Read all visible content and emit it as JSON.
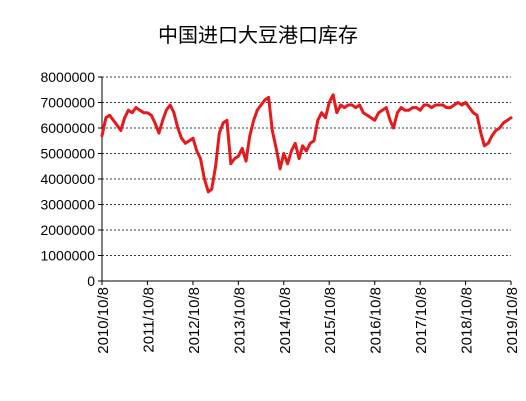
{
  "chart_data": {
    "type": "line",
    "title": "中国进口大豆港口库存",
    "xlabel": "",
    "ylabel": "",
    "ylim": [
      0,
      8000000
    ],
    "y_ticks": [
      0,
      1000000,
      2000000,
      3000000,
      4000000,
      5000000,
      6000000,
      7000000,
      8000000
    ],
    "y_tick_labels": [
      "0",
      "1000000",
      "2000000",
      "3000000",
      "4000000",
      "5000000",
      "6000000",
      "7000000",
      "8000000"
    ],
    "xlim": [
      "2010-10-08",
      "2019-10-08"
    ],
    "x_ticks": [
      "2010-10-08",
      "2011-10-08",
      "2012-10-08",
      "2013-10-08",
      "2014-10-08",
      "2015-10-08",
      "2016-10-08",
      "2017-10-08",
      "2018-10-08",
      "2019-10-08"
    ],
    "x_tick_labels": [
      "2010/10/8",
      "2011/10/8",
      "2012/10/8",
      "2013/10/8",
      "2014/10/8",
      "2015/10/8",
      "2016/10/8",
      "2017/10/8",
      "2018/10/8",
      "2019/10/8"
    ],
    "grid": "horizontal-dashed",
    "series_color": "#e8191c",
    "series": [
      {
        "x": [
          "2010-10-08",
          "2010-11-08",
          "2010-12-08",
          "2011-01-08",
          "2011-02-08",
          "2011-03-08",
          "2011-04-08",
          "2011-05-08",
          "2011-06-08",
          "2011-07-08",
          "2011-08-08",
          "2011-09-08",
          "2011-10-08",
          "2011-11-08",
          "2011-12-08",
          "2012-01-08",
          "2012-02-08",
          "2012-03-08",
          "2012-04-08",
          "2012-05-08",
          "2012-06-08",
          "2012-07-08",
          "2012-08-08",
          "2012-09-08",
          "2012-10-08",
          "2012-11-08",
          "2012-12-08",
          "2013-01-08",
          "2013-02-08",
          "2013-03-08",
          "2013-04-08",
          "2013-05-08",
          "2013-06-08",
          "2013-07-08",
          "2013-08-08",
          "2013-09-08",
          "2013-10-08",
          "2013-11-08",
          "2013-12-08",
          "2014-01-08",
          "2014-02-08",
          "2014-03-08",
          "2014-04-08",
          "2014-05-08",
          "2014-06-08",
          "2014-07-08",
          "2014-08-08",
          "2014-09-08",
          "2014-10-08",
          "2014-11-08",
          "2014-12-08",
          "2015-01-08",
          "2015-02-08",
          "2015-03-08",
          "2015-04-08",
          "2015-05-08",
          "2015-06-08",
          "2015-07-08",
          "2015-08-08",
          "2015-09-08",
          "2015-10-08",
          "2015-11-08",
          "2015-12-08",
          "2016-01-08",
          "2016-02-08",
          "2016-03-08",
          "2016-04-08",
          "2016-05-08",
          "2016-06-08",
          "2016-07-08",
          "2016-08-08",
          "2016-09-08",
          "2016-10-08",
          "2016-11-08",
          "2016-12-08",
          "2017-01-08",
          "2017-02-08",
          "2017-03-08",
          "2017-04-08",
          "2017-05-08",
          "2017-06-08",
          "2017-07-08",
          "2017-08-08",
          "2017-09-08",
          "2017-10-08",
          "2017-11-08",
          "2017-12-08",
          "2018-01-08",
          "2018-02-08",
          "2018-03-08",
          "2018-04-08",
          "2018-05-08",
          "2018-06-08",
          "2018-07-08",
          "2018-08-08",
          "2018-09-08",
          "2018-10-08",
          "2018-11-08",
          "2018-12-08",
          "2019-01-08",
          "2019-02-08",
          "2019-03-08",
          "2019-04-08",
          "2019-05-08",
          "2019-06-08",
          "2019-07-08",
          "2019-08-08",
          "2019-09-08",
          "2019-10-08"
        ],
        "values": [
          5700000,
          6400000,
          6500000,
          6300000,
          6100000,
          5900000,
          6400000,
          6700000,
          6600000,
          6800000,
          6700000,
          6600000,
          6600000,
          6500000,
          6200000,
          5800000,
          6300000,
          6700000,
          6900000,
          6600000,
          6000000,
          5600000,
          5400000,
          5500000,
          5600000,
          5100000,
          4800000,
          4000000,
          3500000,
          3600000,
          4500000,
          5800000,
          6200000,
          6300000,
          4600000,
          4800000,
          4900000,
          5200000,
          4700000,
          5700000,
          6300000,
          6700000,
          6900000,
          7100000,
          7200000,
          5900000,
          5200000,
          4400000,
          5000000,
          4600000,
          5100000,
          5400000,
          4800000,
          5300000,
          5100000,
          5400000,
          5500000,
          6300000,
          6600000,
          6400000,
          7000000,
          7300000,
          6600000,
          6900000,
          6800000,
          6900000,
          6900000,
          6800000,
          6900000,
          6600000,
          6500000,
          6400000,
          6300000,
          6600000,
          6700000,
          6800000,
          6300000,
          6000000,
          6600000,
          6800000,
          6700000,
          6700000,
          6800000,
          6800000,
          6700000,
          6900000,
          6900000,
          6800000,
          6900000,
          6900000,
          6900000,
          6800000,
          6800000,
          6900000,
          7000000,
          6900000,
          7000000,
          6800000,
          6600000,
          6500000,
          5800000,
          5300000,
          5400000,
          5700000,
          5900000,
          6000000,
          6200000,
          6300000,
          6400000
        ]
      }
    ]
  }
}
